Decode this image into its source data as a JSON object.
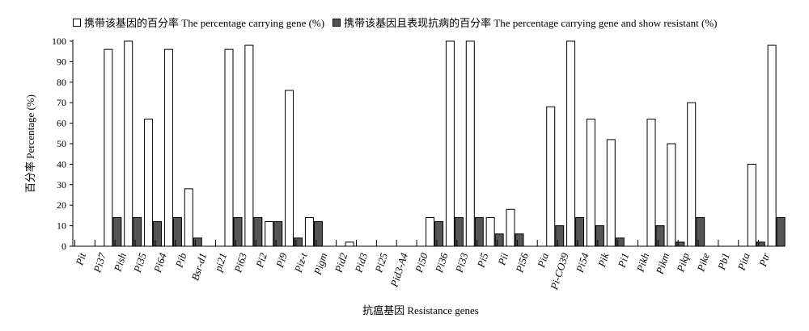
{
  "chart_data": {
    "type": "bar",
    "categories": [
      "Pit",
      "Pi37",
      "Pish",
      "Pi35",
      "Pi64",
      "Pib",
      "Bsr-d1",
      "pi21",
      "Pi63",
      "Pi2",
      "Pi9",
      "Piz-t",
      "Pigm",
      "Pid2",
      "Pid3",
      "Pi25",
      "Pid3-A4",
      "Pi50",
      "Pi36",
      "Pi33",
      "Pi5",
      "Pii",
      "Pi56",
      "Pia",
      "Pi-CO39",
      "Pi54",
      "Pik",
      "Pi1",
      "Pikh",
      "Pikm",
      "Pikp",
      "Pike",
      "Pb1",
      "Pita",
      "Ptr"
    ],
    "series": [
      {
        "name": "携带该基因的百分率 The percentage carrying gene (%)",
        "values": [
          0,
          96,
          100,
          62,
          96,
          28,
          0,
          96,
          98,
          12,
          76,
          14,
          0,
          2,
          0,
          0,
          0,
          14,
          100,
          100,
          14,
          18,
          0,
          68,
          100,
          62,
          52,
          0,
          62,
          50,
          70,
          0,
          0,
          40,
          98
        ]
      },
      {
        "name": "携带该基因且表现抗病的百分率 The percentage carrying gene and show resistant (%)",
        "values": [
          0,
          14,
          14,
          12,
          14,
          4,
          0,
          14,
          14,
          12,
          4,
          12,
          0,
          0,
          0,
          0,
          0,
          12,
          14,
          14,
          6,
          6,
          0,
          10,
          14,
          10,
          4,
          0,
          10,
          2,
          14,
          0,
          0,
          2,
          14
        ]
      }
    ],
    "xlabel": "抗瘟基因 Resistance genes",
    "ylabel": "百分率 Percentage (%)",
    "ylim": [
      0,
      100
    ],
    "yticks": [
      0,
      10,
      20,
      30,
      40,
      50,
      60,
      70,
      80,
      90,
      100
    ],
    "grid": false,
    "legend": "top",
    "colors": {
      "series1": "#ffffff",
      "series2": "#555555"
    }
  }
}
